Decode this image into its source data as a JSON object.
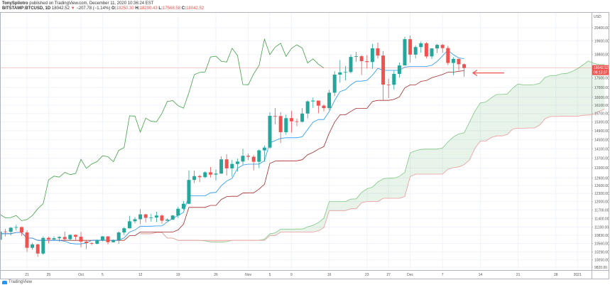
{
  "header": {
    "author": "TonySpilotro",
    "published": "published on TradingView.com, December 11, 2020 10:36:24 EST",
    "symbol": "BITSTAMP:BTCUSD, 1D",
    "last": "18042.52",
    "change_arrow": "▼",
    "change": "−207.78 (−1.14%)",
    "o_label": "O:",
    "o": "18250.30",
    "h_label": "H:",
    "h": "18290.43",
    "l_label": "L:",
    "l": "17568.58",
    "c_label": "C:",
    "c": "18042.52"
  },
  "price_axis": {
    "currency": "USD",
    "current_price": "18042.52",
    "countdown": "08:13:37"
  },
  "footer": {
    "logo": "TradingView"
  },
  "colors": {
    "up": "#26a69a",
    "down": "#ef5350",
    "conversion": "#2196f3",
    "base": "#a52a2a",
    "lagging": "#43a047",
    "span_a": "#81c784",
    "span_b": "#ef9a9a",
    "annotation": "#ef5350"
  },
  "chart_data": {
    "type": "candlestick",
    "indicator": "ichimoku",
    "yscale": "log",
    "ylim": [
      9820,
      20800
    ],
    "grid": true,
    "y_ticks": [
      "20400.00",
      "19600.00",
      "18800.00",
      "17500.00",
      "17000.00",
      "16500.00",
      "16100.00",
      "15700.00",
      "15300.00",
      "14900.00",
      "14500.00",
      "14100.00",
      "13700.00",
      "13300.00",
      "12900.00",
      "12600.00",
      "12300.00",
      "12000.00",
      "11700.00",
      "11400.00",
      "11100.00",
      "10830.00",
      "10560.00",
      "10290.00",
      "10050.00",
      "9820.00"
    ],
    "x_ticks": [
      {
        "label": "21",
        "date": "2020-09-21"
      },
      {
        "label": "25",
        "date": "2020-09-25"
      },
      {
        "label": "Oct",
        "date": "2020-10-01"
      },
      {
        "label": "5",
        "date": "2020-10-05"
      },
      {
        "label": "12",
        "date": "2020-10-12"
      },
      {
        "label": "19",
        "date": "2020-10-19"
      },
      {
        "label": "26",
        "date": "2020-10-26"
      },
      {
        "label": "Nov",
        "date": "2020-11-01"
      },
      {
        "label": "5",
        "date": "2020-11-05"
      },
      {
        "label": "9",
        "date": "2020-11-09"
      },
      {
        "label": "16",
        "date": "2020-11-16"
      },
      {
        "label": "23",
        "date": "2020-11-23"
      },
      {
        "label": "27",
        "date": "2020-11-27"
      },
      {
        "label": "Dec",
        "date": "2020-12-01"
      },
      {
        "label": "7",
        "date": "2020-12-07"
      },
      {
        "label": "14",
        "date": "2020-12-14"
      },
      {
        "label": "21",
        "date": "2020-12-21"
      },
      {
        "label": "28",
        "date": "2020-12-28"
      },
      {
        "label": "2021",
        "date": "2021-01-01"
      }
    ],
    "ohlc_columns": [
      "date",
      "open",
      "high",
      "low",
      "close"
    ],
    "ohlc": [
      [
        "2020-09-16",
        10680,
        11100,
        10660,
        10950
      ],
      [
        "2020-09-17",
        10950,
        11040,
        10790,
        10940
      ],
      [
        "2020-09-18",
        10940,
        11100,
        10820,
        11080
      ],
      [
        "2020-09-19",
        11080,
        11180,
        10990,
        11100
      ],
      [
        "2020-09-20",
        11100,
        11120,
        10810,
        10920
      ],
      [
        "2020-09-21",
        10920,
        10990,
        10290,
        10420
      ],
      [
        "2020-09-22",
        10420,
        10580,
        10360,
        10530
      ],
      [
        "2020-09-23",
        10530,
        10550,
        10140,
        10240
      ],
      [
        "2020-09-24",
        10240,
        10790,
        10200,
        10740
      ],
      [
        "2020-09-25",
        10740,
        10780,
        10560,
        10690
      ],
      [
        "2020-09-26",
        10690,
        10790,
        10660,
        10730
      ],
      [
        "2020-09-27",
        10730,
        10800,
        10620,
        10770
      ],
      [
        "2020-09-28",
        10770,
        10950,
        10640,
        10700
      ],
      [
        "2020-09-29",
        10700,
        10860,
        10650,
        10840
      ],
      [
        "2020-09-30",
        10840,
        10850,
        10680,
        10780
      ],
      [
        "2020-10-01",
        10780,
        10940,
        10440,
        10620
      ],
      [
        "2020-10-02",
        10620,
        10660,
        10380,
        10570
      ],
      [
        "2020-10-03",
        10570,
        10600,
        10510,
        10550
      ],
      [
        "2020-10-04",
        10550,
        10690,
        10530,
        10670
      ],
      [
        "2020-10-05",
        10670,
        10800,
        10630,
        10790
      ],
      [
        "2020-10-06",
        10790,
        10800,
        10530,
        10600
      ],
      [
        "2020-10-07",
        10600,
        10690,
        10590,
        10670
      ],
      [
        "2020-10-08",
        10670,
        10960,
        10550,
        10920
      ],
      [
        "2020-10-09",
        10920,
        11100,
        10830,
        11060
      ],
      [
        "2020-10-10",
        11060,
        11490,
        11060,
        11300
      ],
      [
        "2020-10-11",
        11300,
        11440,
        11230,
        11370
      ],
      [
        "2020-10-12",
        11370,
        11730,
        11200,
        11540
      ],
      [
        "2020-10-13",
        11540,
        11560,
        11260,
        11420
      ],
      [
        "2020-10-14",
        11420,
        11560,
        11280,
        11430
      ],
      [
        "2020-10-15",
        11430,
        11630,
        11270,
        11500
      ],
      [
        "2020-10-16",
        11500,
        11540,
        11220,
        11320
      ],
      [
        "2020-10-17",
        11320,
        11400,
        11310,
        11360
      ],
      [
        "2020-10-18",
        11360,
        11520,
        11340,
        11500
      ],
      [
        "2020-10-19",
        11500,
        11810,
        11410,
        11740
      ],
      [
        "2020-10-20",
        11740,
        12020,
        11690,
        11920
      ],
      [
        "2020-10-21",
        11920,
        13200,
        11900,
        12820
      ],
      [
        "2020-10-22",
        12820,
        13190,
        12700,
        12970
      ],
      [
        "2020-10-23",
        12970,
        13020,
        12730,
        12930
      ],
      [
        "2020-10-24",
        12930,
        13160,
        12890,
        13120
      ],
      [
        "2020-10-25",
        13120,
        13340,
        12920,
        13030
      ],
      [
        "2020-10-26",
        13030,
        13240,
        12800,
        13070
      ],
      [
        "2020-10-27",
        13070,
        13780,
        13060,
        13650
      ],
      [
        "2020-10-28",
        13650,
        13860,
        12990,
        13280
      ],
      [
        "2020-10-29",
        13280,
        13630,
        12950,
        13460
      ],
      [
        "2020-10-30",
        13460,
        13680,
        13150,
        13560
      ],
      [
        "2020-10-31",
        13560,
        14100,
        13430,
        13800
      ],
      [
        "2020-11-01",
        13800,
        13900,
        13620,
        13760
      ],
      [
        "2020-11-02",
        13760,
        13830,
        13200,
        13550
      ],
      [
        "2020-11-03",
        13550,
        14080,
        13290,
        14030
      ],
      [
        "2020-11-04",
        14030,
        14240,
        13550,
        14150
      ],
      [
        "2020-11-05",
        14150,
        15760,
        14100,
        15590
      ],
      [
        "2020-11-06",
        15590,
        15960,
        15190,
        15580
      ],
      [
        "2020-11-07",
        15580,
        15770,
        14350,
        14830
      ],
      [
        "2020-11-08",
        14830,
        15650,
        14720,
        15480
      ],
      [
        "2020-11-09",
        15480,
        15830,
        14810,
        15330
      ],
      [
        "2020-11-10",
        15330,
        15460,
        15100,
        15310
      ],
      [
        "2020-11-11",
        15310,
        15960,
        15280,
        15700
      ],
      [
        "2020-11-12",
        15700,
        16350,
        15460,
        16290
      ],
      [
        "2020-11-13",
        16290,
        16480,
        15970,
        16330
      ],
      [
        "2020-11-14",
        16330,
        16330,
        15710,
        16080
      ],
      [
        "2020-11-15",
        16080,
        16150,
        15800,
        15960
      ],
      [
        "2020-11-16",
        15960,
        16880,
        15870,
        16730
      ],
      [
        "2020-11-17",
        16730,
        17860,
        16560,
        17680
      ],
      [
        "2020-11-18",
        17680,
        18480,
        17250,
        17800
      ],
      [
        "2020-11-19",
        17800,
        18150,
        17370,
        17820
      ],
      [
        "2020-11-20",
        17820,
        18800,
        17750,
        18660
      ],
      [
        "2020-11-21",
        18660,
        18950,
        18380,
        18700
      ],
      [
        "2020-11-22",
        18700,
        18770,
        17660,
        18420
      ],
      [
        "2020-11-23",
        18420,
        18760,
        18010,
        18370
      ],
      [
        "2020-11-24",
        18370,
        19420,
        18000,
        19160
      ],
      [
        "2020-11-25",
        19160,
        19490,
        18570,
        18740
      ],
      [
        "2020-11-26",
        18740,
        19000,
        16330,
        17150
      ],
      [
        "2020-11-27",
        17150,
        17460,
        16460,
        17140
      ],
      [
        "2020-11-28",
        17140,
        17890,
        16890,
        17720
      ],
      [
        "2020-11-29",
        17720,
        18350,
        17520,
        18180
      ],
      [
        "2020-11-30",
        18180,
        19850,
        18180,
        19700
      ],
      [
        "2020-12-01",
        19700,
        19920,
        18330,
        18790
      ],
      [
        "2020-12-02",
        18790,
        19320,
        18580,
        19230
      ],
      [
        "2020-12-03",
        19230,
        19560,
        18900,
        19450
      ],
      [
        "2020-12-04",
        19450,
        19520,
        18580,
        18690
      ],
      [
        "2020-12-05",
        18690,
        19170,
        18550,
        19150
      ],
      [
        "2020-12-06",
        19150,
        19420,
        18880,
        19360
      ],
      [
        "2020-12-07",
        19360,
        19420,
        18900,
        19170
      ],
      [
        "2020-12-08",
        19170,
        19300,
        18200,
        18320
      ],
      [
        "2020-12-09",
        18320,
        18640,
        17650,
        18550
      ],
      [
        "2020-12-10",
        18550,
        18570,
        17900,
        18250
      ],
      [
        "2020-12-11",
        18250.3,
        18290.43,
        17568.58,
        18042.52
      ]
    ]
  }
}
